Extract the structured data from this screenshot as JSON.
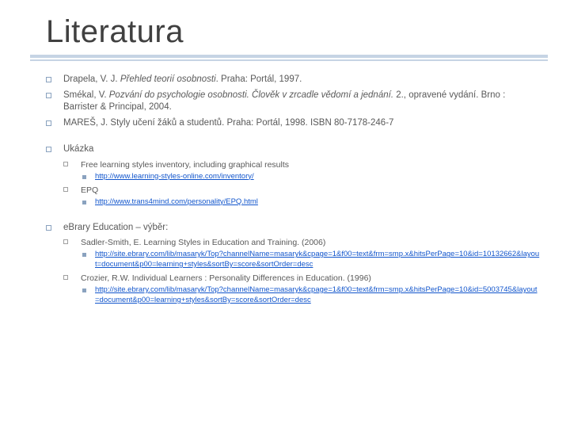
{
  "colors": {
    "text": "#595959",
    "title": "#404040",
    "rule": "#c6d4e4",
    "bullet_lvl1_border": "#8aa2bf",
    "bullet_lvl2_border": "#a0a0a0",
    "bullet_lvl3_fill": "#8aa2bf",
    "link": "#1155cc",
    "background": "#ffffff"
  },
  "fonts": {
    "family": "Arial",
    "title_size_pt": 30,
    "body_size_pt": 9,
    "lvl2_size_pt": 8,
    "lvl3_size_pt": 7
  },
  "title": "Literatura",
  "ref1_a": "Drapela, V. J. ",
  "ref1_b": "Přehled teorií osobnosti",
  "ref1_c": ". Praha: Portál, 1997.",
  "ref2_a": "Smékal, V. ",
  "ref2_b": "Pozvání do psychologie osobnosti. Člověk v zrcadle vědomí a jednání.",
  "ref2_c": " 2., opravené vydání. Brno : Barrister & Principal, 2004.",
  "ref3": "MAREŠ, J. Styly učení žáků a studentů. Praha: Portál, 1998. ISBN 80-7178-246-7",
  "ukazka_label": "Ukázka",
  "uk1": "Free learning styles inventory, including graphical results",
  "uk1_link": "http://www.learning-styles-online.com/inventory/",
  "uk2": "EPQ",
  "uk2_link": "http://www.trans4mind.com/personality/EPQ.html",
  "ebrary_label": "eBrary Education – výběr:",
  "eb1": "Sadler-Smith, E. Learning Styles in Education and Training. (2006)",
  "eb1_link": "http://site.ebrary.com/lib/masaryk/Top?channelName=masaryk&cpage=1&f00=text&frm=smp.x&hitsPerPage=10&id=10132662&layout=document&p00=learning+styles&sortBy=score&sortOrder=desc",
  "eb2": "Crozier, R.W. Individual Learners : Personality Differences in Education. (1996)",
  "eb2_link": "http://site.ebrary.com/lib/masaryk/Top?channelName=masaryk&cpage=1&f00=text&frm=smp.x&hitsPerPage=10&id=5003745&layout=document&p00=learning+styles&sortBy=score&sortOrder=desc"
}
